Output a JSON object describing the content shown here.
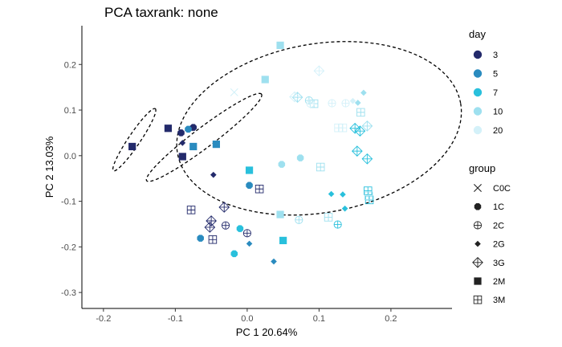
{
  "chart_data": {
    "type": "scatter",
    "title": "PCA taxrank: none",
    "xlabel": "PC 1 20.64%",
    "ylabel": "PC 2 13.03%",
    "xlim": [
      -0.23,
      0.285
    ],
    "ylim": [
      -0.335,
      0.285
    ],
    "xticks": [
      -0.2,
      -0.1,
      0.0,
      0.1,
      0.2
    ],
    "yticks": [
      -0.3,
      -0.2,
      -0.1,
      0.0,
      0.1,
      0.2
    ],
    "xtick_labels": [
      "-0.2",
      "-0.1",
      "0.0",
      "0.1",
      "0.2"
    ],
    "ytick_labels": [
      "-0.3",
      "-0.2",
      "-0.1",
      "0.0",
      "0.1",
      "0.2"
    ],
    "grid": false,
    "legend_position": "right",
    "day_legend": {
      "title": "day",
      "entries": [
        {
          "label": "3",
          "color": "#232a6b"
        },
        {
          "label": "5",
          "color": "#2a8bbf"
        },
        {
          "label": "7",
          "color": "#29c0dc"
        },
        {
          "label": "10",
          "color": "#9ee0ef"
        },
        {
          "label": "20",
          "color": "#d4f1f9"
        }
      ]
    },
    "group_legend": {
      "title": "group",
      "entries": [
        {
          "label": "C0C",
          "shape": "x"
        },
        {
          "label": "1C",
          "shape": "octagon"
        },
        {
          "label": "2C",
          "shape": "circle-plus"
        },
        {
          "label": "2G",
          "shape": "diamond"
        },
        {
          "label": "3G",
          "shape": "diamond-plus"
        },
        {
          "label": "2M",
          "shape": "square"
        },
        {
          "label": "3M",
          "shape": "square-plus"
        }
      ]
    },
    "points": [
      {
        "x": -0.16,
        "y": 0.02,
        "day": "3",
        "group": "2M"
      },
      {
        "x": -0.11,
        "y": 0.06,
        "day": "3",
        "group": "2M"
      },
      {
        "x": -0.092,
        "y": 0.05,
        "day": "3",
        "group": "1C"
      },
      {
        "x": -0.075,
        "y": 0.062,
        "day": "3",
        "group": "1C"
      },
      {
        "x": -0.09,
        "y": 0.028,
        "day": "3",
        "group": "2G"
      },
      {
        "x": -0.09,
        "y": -0.002,
        "day": "3",
        "group": "2M"
      },
      {
        "x": -0.047,
        "y": -0.042,
        "day": "3",
        "group": "2G"
      },
      {
        "x": -0.078,
        "y": -0.119,
        "day": "3",
        "group": "3M"
      },
      {
        "x": -0.05,
        "y": -0.143,
        "day": "3",
        "group": "3G"
      },
      {
        "x": -0.052,
        "y": -0.157,
        "day": "3",
        "group": "3G"
      },
      {
        "x": -0.032,
        "y": -0.113,
        "day": "3",
        "group": "3G"
      },
      {
        "x": -0.03,
        "y": -0.153,
        "day": "3",
        "group": "2C"
      },
      {
        "x": -0.048,
        "y": -0.184,
        "day": "3",
        "group": "3M"
      },
      {
        "x": 0.0,
        "y": -0.17,
        "day": "3",
        "group": "2C"
      },
      {
        "x": 0.017,
        "y": -0.073,
        "day": "3",
        "group": "3M"
      },
      {
        "x": -0.082,
        "y": 0.058,
        "day": "5",
        "group": "1C"
      },
      {
        "x": -0.075,
        "y": 0.02,
        "day": "5",
        "group": "2M"
      },
      {
        "x": -0.043,
        "y": 0.025,
        "day": "5",
        "group": "2M"
      },
      {
        "x": 0.003,
        "y": -0.065,
        "day": "5",
        "group": "1C"
      },
      {
        "x": -0.065,
        "y": -0.181,
        "day": "5",
        "group": "1C"
      },
      {
        "x": 0.003,
        "y": -0.193,
        "day": "5",
        "group": "2G"
      },
      {
        "x": 0.037,
        "y": -0.232,
        "day": "5",
        "group": "2G"
      },
      {
        "x": 0.003,
        "y": -0.032,
        "day": "7",
        "group": "2M"
      },
      {
        "x": -0.01,
        "y": -0.16,
        "day": "7",
        "group": "1C"
      },
      {
        "x": -0.018,
        "y": -0.215,
        "day": "7",
        "group": "1C"
      },
      {
        "x": 0.05,
        "y": -0.186,
        "day": "7",
        "group": "2M"
      },
      {
        "x": 0.117,
        "y": -0.084,
        "day": "7",
        "group": "2G"
      },
      {
        "x": 0.133,
        "y": -0.085,
        "day": "7",
        "group": "2G"
      },
      {
        "x": 0.136,
        "y": -0.116,
        "day": "7",
        "group": "2G"
      },
      {
        "x": 0.153,
        "y": 0.01,
        "day": "7",
        "group": "3G"
      },
      {
        "x": 0.167,
        "y": -0.007,
        "day": "7",
        "group": "3G"
      },
      {
        "x": 0.168,
        "y": -0.077,
        "day": "7",
        "group": "3M"
      },
      {
        "x": 0.17,
        "y": -0.097,
        "day": "7",
        "group": "3M"
      },
      {
        "x": 0.126,
        "y": -0.151,
        "day": "7",
        "group": "2C"
      },
      {
        "x": 0.15,
        "y": 0.06,
        "day": "7",
        "group": "3G"
      },
      {
        "x": 0.157,
        "y": 0.054,
        "day": "7",
        "group": "3G"
      },
      {
        "x": 0.046,
        "y": -0.129,
        "day": "10",
        "group": "2M"
      },
      {
        "x": 0.048,
        "y": -0.019,
        "day": "10",
        "group": "1C"
      },
      {
        "x": 0.074,
        "y": -0.005,
        "day": "10",
        "group": "1C"
      },
      {
        "x": 0.102,
        "y": -0.025,
        "day": "10",
        "group": "3M"
      },
      {
        "x": 0.113,
        "y": -0.135,
        "day": "10",
        "group": "3M"
      },
      {
        "x": 0.169,
        "y": -0.088,
        "day": "10",
        "group": "3M"
      },
      {
        "x": 0.158,
        "y": 0.095,
        "day": "10",
        "group": "3M"
      },
      {
        "x": 0.167,
        "y": 0.065,
        "day": "10",
        "group": "3G"
      },
      {
        "x": 0.154,
        "y": 0.116,
        "day": "10",
        "group": "2G"
      },
      {
        "x": 0.162,
        "y": 0.138,
        "day": "10",
        "group": "2G"
      },
      {
        "x": 0.072,
        "y": -0.141,
        "day": "10",
        "group": "2C"
      },
      {
        "x": 0.046,
        "y": 0.242,
        "day": "10",
        "group": "2M"
      },
      {
        "x": 0.025,
        "y": 0.167,
        "day": "10",
        "group": "2M"
      },
      {
        "x": 0.07,
        "y": 0.128,
        "day": "10",
        "group": "3G"
      },
      {
        "x": 0.086,
        "y": 0.121,
        "day": "10",
        "group": "2C"
      },
      {
        "x": 0.093,
        "y": 0.114,
        "day": "10",
        "group": "3M"
      },
      {
        "x": 0.1,
        "y": 0.186,
        "day": "20",
        "group": "3G"
      },
      {
        "x": 0.066,
        "y": 0.129,
        "day": "20",
        "group": "3G"
      },
      {
        "x": 0.088,
        "y": 0.114,
        "day": "20",
        "group": "2C"
      },
      {
        "x": 0.118,
        "y": 0.115,
        "day": "20",
        "group": "2C"
      },
      {
        "x": 0.137,
        "y": 0.115,
        "day": "20",
        "group": "2C"
      },
      {
        "x": 0.147,
        "y": 0.12,
        "day": "20",
        "group": "2G"
      },
      {
        "x": 0.127,
        "y": 0.061,
        "day": "20",
        "group": "3M"
      },
      {
        "x": 0.133,
        "y": 0.061,
        "day": "20",
        "group": "3M"
      },
      {
        "x": -0.018,
        "y": 0.139,
        "day": "20",
        "group": "C0C"
      }
    ],
    "ellipses": [
      {
        "cx": -0.06,
        "cy": 0.04,
        "rx": 0.1,
        "ry": 0.022,
        "angle_deg": 37
      },
      {
        "cx": -0.157,
        "cy": 0.035,
        "rx": 0.052,
        "ry": 0.013,
        "angle_deg": 56
      },
      {
        "cx": 0.1,
        "cy": 0.06,
        "rx": 0.2,
        "ry": 0.185,
        "angle_deg": 10
      }
    ]
  }
}
